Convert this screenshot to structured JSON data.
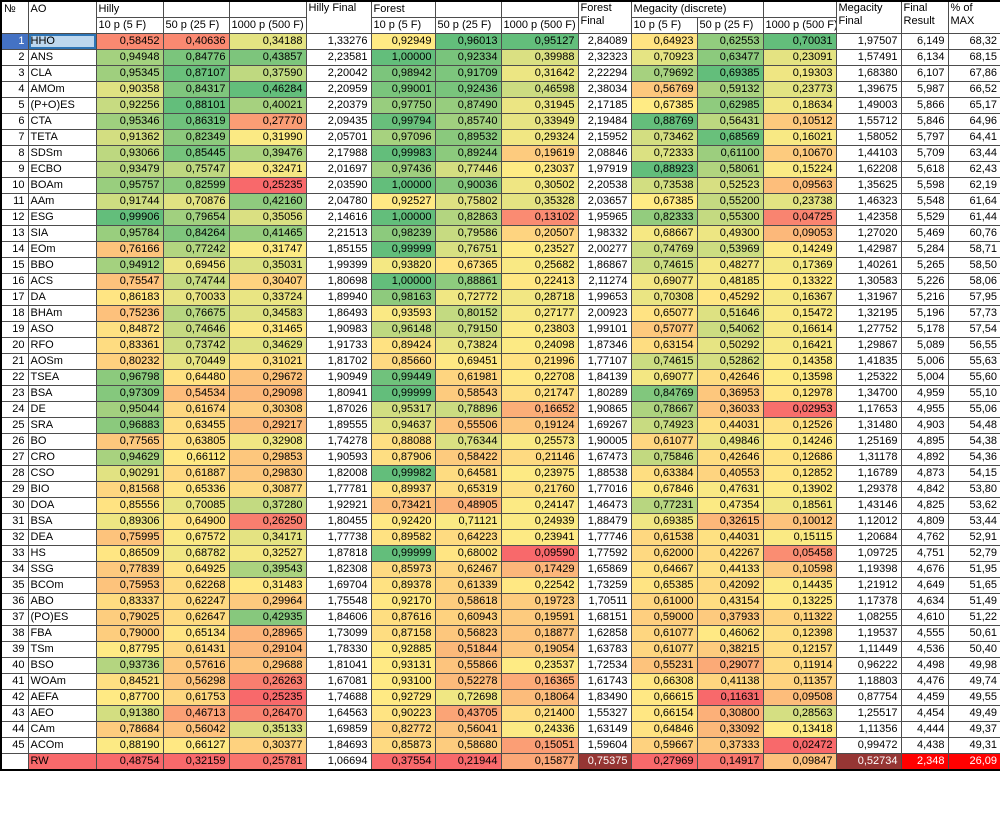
{
  "table": {
    "corner": {
      "num_header": "№",
      "ao_header": "AO"
    },
    "group_headers": {
      "hilly": "Hilly",
      "forest": "Forest",
      "megacity": "Megacity (discrete)"
    },
    "sub_headers": {
      "p10": "10 p (5 F)",
      "p50": "50 p (25 F)",
      "p1000": "1000 p (500 F)"
    },
    "final_headers": {
      "hilly": "Hilly Final",
      "forest": "Forest Final",
      "megacity": "Megacity Final"
    },
    "result_headers": {
      "final": "Final Result",
      "pct": "% of MAX"
    },
    "rows": [
      {
        "num": "1",
        "ao": "HHO",
        "selected": true,
        "values": [
          "0,58452",
          "0,40636",
          "0,34188",
          "1,33276",
          "0,92949",
          "0,96013",
          "0,95127",
          "2,84089",
          "0,64923",
          "0,62553",
          "0,70031",
          "1,97507",
          "6,149",
          "68,32"
        ]
      },
      {
        "num": "2",
        "ao": "ANS",
        "values": [
          "0,94948",
          "0,84776",
          "0,43857",
          "2,23581",
          "1,00000",
          "0,92334",
          "0,39988",
          "2,32323",
          "0,70923",
          "0,63477",
          "0,23091",
          "1,57491",
          "6,134",
          "68,15"
        ]
      },
      {
        "num": "3",
        "ao": "CLA",
        "values": [
          "0,95345",
          "0,87107",
          "0,37590",
          "2,20042",
          "0,98942",
          "0,91709",
          "0,31642",
          "2,22294",
          "0,79692",
          "0,69385",
          "0,19303",
          "1,68380",
          "6,107",
          "67,86"
        ]
      },
      {
        "num": "4",
        "ao": "AMOm",
        "values": [
          "0,90358",
          "0,84317",
          "0,46284",
          "2,20959",
          "0,99001",
          "0,92436",
          "0,46598",
          "2,38034",
          "0,56769",
          "0,59132",
          "0,23773",
          "1,39675",
          "5,987",
          "66,52"
        ]
      },
      {
        "num": "5",
        "ao": "(P+O)ES",
        "values": [
          "0,92256",
          "0,88101",
          "0,40021",
          "2,20379",
          "0,97750",
          "0,87490",
          "0,31945",
          "2,17185",
          "0,67385",
          "0,62985",
          "0,18634",
          "1,49003",
          "5,866",
          "65,17"
        ]
      },
      {
        "num": "6",
        "ao": "CTA",
        "values": [
          "0,95346",
          "0,86319",
          "0,27770",
          "2,09435",
          "0,99794",
          "0,85740",
          "0,33949",
          "2,19484",
          "0,88769",
          "0,56431",
          "0,10512",
          "1,55712",
          "5,846",
          "64,96"
        ]
      },
      {
        "num": "7",
        "ao": "TETA",
        "values": [
          "0,91362",
          "0,82349",
          "0,31990",
          "2,05701",
          "0,97096",
          "0,89532",
          "0,29324",
          "2,15952",
          "0,73462",
          "0,68569",
          "0,16021",
          "1,58052",
          "5,797",
          "64,41"
        ]
      },
      {
        "num": "8",
        "ao": "SDSm",
        "values": [
          "0,93066",
          "0,85445",
          "0,39476",
          "2,17988",
          "0,99983",
          "0,89244",
          "0,19619",
          "2,08846",
          "0,72333",
          "0,61100",
          "0,10670",
          "1,44103",
          "5,709",
          "63,44"
        ]
      },
      {
        "num": "9",
        "ao": "ECBO",
        "values": [
          "0,93479",
          "0,75747",
          "0,32471",
          "2,01697",
          "0,97436",
          "0,77446",
          "0,23037",
          "1,97919",
          "0,88923",
          "0,58061",
          "0,15224",
          "1,62208",
          "5,618",
          "62,43"
        ]
      },
      {
        "num": "10",
        "ao": "BOAm",
        "values": [
          "0,95757",
          "0,82599",
          "0,25235",
          "2,03590",
          "1,00000",
          "0,90036",
          "0,30502",
          "2,20538",
          "0,73538",
          "0,52523",
          "0,09563",
          "1,35625",
          "5,598",
          "62,19"
        ]
      },
      {
        "num": "11",
        "ao": "AAm",
        "values": [
          "0,91744",
          "0,70876",
          "0,42160",
          "2,04780",
          "0,92527",
          "0,75802",
          "0,35328",
          "2,03657",
          "0,67385",
          "0,55200",
          "0,23738",
          "1,46323",
          "5,548",
          "61,64"
        ]
      },
      {
        "num": "12",
        "ao": "ESG",
        "values": [
          "0,99906",
          "0,79654",
          "0,35056",
          "2,14616",
          "1,00000",
          "0,82863",
          "0,13102",
          "1,95965",
          "0,82333",
          "0,55300",
          "0,04725",
          "1,42358",
          "5,529",
          "61,44"
        ]
      },
      {
        "num": "13",
        "ao": "SIA",
        "values": [
          "0,95784",
          "0,84264",
          "0,41465",
          "2,21513",
          "0,98239",
          "0,79586",
          "0,20507",
          "1,98332",
          "0,68667",
          "0,49300",
          "0,09053",
          "1,27020",
          "5,469",
          "60,76"
        ]
      },
      {
        "num": "14",
        "ao": "EOm",
        "values": [
          "0,76166",
          "0,77242",
          "0,31747",
          "1,85155",
          "0,99999",
          "0,76751",
          "0,23527",
          "2,00277",
          "0,74769",
          "0,53969",
          "0,14249",
          "1,42987",
          "5,284",
          "58,71"
        ]
      },
      {
        "num": "15",
        "ao": "BBO",
        "values": [
          "0,94912",
          "0,69456",
          "0,35031",
          "1,99399",
          "0,93820",
          "0,67365",
          "0,25682",
          "1,86867",
          "0,74615",
          "0,48277",
          "0,17369",
          "1,40261",
          "5,265",
          "58,50"
        ]
      },
      {
        "num": "16",
        "ao": "ACS",
        "values": [
          "0,75547",
          "0,74744",
          "0,30407",
          "1,80698",
          "1,00000",
          "0,88861",
          "0,22413",
          "2,11274",
          "0,69077",
          "0,48185",
          "0,13322",
          "1,30583",
          "5,226",
          "58,06"
        ]
      },
      {
        "num": "17",
        "ao": "DA",
        "values": [
          "0,86183",
          "0,70033",
          "0,33724",
          "1,89940",
          "0,98163",
          "0,72772",
          "0,28718",
          "1,99653",
          "0,70308",
          "0,45292",
          "0,16367",
          "1,31967",
          "5,216",
          "57,95"
        ]
      },
      {
        "num": "18",
        "ao": "BHAm",
        "values": [
          "0,75236",
          "0,76675",
          "0,34583",
          "1,86493",
          "0,93593",
          "0,80152",
          "0,27177",
          "2,00923",
          "0,65077",
          "0,51646",
          "0,15472",
          "1,32195",
          "5,196",
          "57,73"
        ]
      },
      {
        "num": "19",
        "ao": "ASO",
        "values": [
          "0,84872",
          "0,74646",
          "0,31465",
          "1,90983",
          "0,96148",
          "0,79150",
          "0,23803",
          "1,99101",
          "0,57077",
          "0,54062",
          "0,16614",
          "1,27752",
          "5,178",
          "57,54"
        ]
      },
      {
        "num": "20",
        "ao": "RFO",
        "values": [
          "0,83361",
          "0,73742",
          "0,34629",
          "1,91733",
          "0,89424",
          "0,73824",
          "0,24098",
          "1,87346",
          "0,63154",
          "0,50292",
          "0,16421",
          "1,29867",
          "5,089",
          "56,55"
        ]
      },
      {
        "num": "21",
        "ao": "AOSm",
        "values": [
          "0,80232",
          "0,70449",
          "0,31021",
          "1,81702",
          "0,85660",
          "0,69451",
          "0,21996",
          "1,77107",
          "0,74615",
          "0,52862",
          "0,14358",
          "1,41835",
          "5,006",
          "55,63"
        ]
      },
      {
        "num": "22",
        "ao": "TSEA",
        "values": [
          "0,96798",
          "0,64480",
          "0,29672",
          "1,90949",
          "0,99449",
          "0,61981",
          "0,22708",
          "1,84139",
          "0,69077",
          "0,42646",
          "0,13598",
          "1,25322",
          "5,004",
          "55,60"
        ]
      },
      {
        "num": "23",
        "ao": "BSA",
        "values": [
          "0,97309",
          "0,54534",
          "0,29098",
          "1,80941",
          "0,99999",
          "0,58543",
          "0,21747",
          "1,80289",
          "0,84769",
          "0,36953",
          "0,12978",
          "1,34700",
          "4,959",
          "55,10"
        ]
      },
      {
        "num": "24",
        "ao": "DE",
        "values": [
          "0,95044",
          "0,61674",
          "0,30308",
          "1,87026",
          "0,95317",
          "0,78896",
          "0,16652",
          "1,90865",
          "0,78667",
          "0,36033",
          "0,02953",
          "1,17653",
          "4,955",
          "55,06"
        ]
      },
      {
        "num": "25",
        "ao": "SRA",
        "values": [
          "0,96883",
          "0,63455",
          "0,29217",
          "1,89555",
          "0,94637",
          "0,55506",
          "0,19124",
          "1,69267",
          "0,74923",
          "0,44031",
          "0,12526",
          "1,31480",
          "4,903",
          "54,48"
        ]
      },
      {
        "num": "26",
        "ao": "BO",
        "values": [
          "0,77565",
          "0,63805",
          "0,32908",
          "1,74278",
          "0,88088",
          "0,76344",
          "0,25573",
          "1,90005",
          "0,61077",
          "0,49846",
          "0,14246",
          "1,25169",
          "4,895",
          "54,38"
        ]
      },
      {
        "num": "27",
        "ao": "CRO",
        "values": [
          "0,94629",
          "0,66112",
          "0,29853",
          "1,90593",
          "0,87906",
          "0,58422",
          "0,21146",
          "1,67473",
          "0,75846",
          "0,42646",
          "0,12686",
          "1,31178",
          "4,892",
          "54,36"
        ]
      },
      {
        "num": "28",
        "ao": "CSO",
        "values": [
          "0,90291",
          "0,61887",
          "0,29830",
          "1,82008",
          "0,99982",
          "0,64581",
          "0,23975",
          "1,88538",
          "0,63384",
          "0,40553",
          "0,12852",
          "1,16789",
          "4,873",
          "54,15"
        ]
      },
      {
        "num": "29",
        "ao": "BIO",
        "values": [
          "0,81568",
          "0,65336",
          "0,30877",
          "1,77781",
          "0,89937",
          "0,65319",
          "0,21760",
          "1,77016",
          "0,67846",
          "0,47631",
          "0,13902",
          "1,29378",
          "4,842",
          "53,80"
        ]
      },
      {
        "num": "30",
        "ao": "DOA",
        "values": [
          "0,85556",
          "0,70085",
          "0,37280",
          "1,92921",
          "0,73421",
          "0,48905",
          "0,24147",
          "1,46473",
          "0,77231",
          "0,47354",
          "0,18561",
          "1,43146",
          "4,825",
          "53,62"
        ]
      },
      {
        "num": "31",
        "ao": "BSA",
        "values": [
          "0,89306",
          "0,64900",
          "0,26250",
          "1,80455",
          "0,92420",
          "0,71121",
          "0,24939",
          "1,88479",
          "0,69385",
          "0,32615",
          "0,10012",
          "1,12012",
          "4,809",
          "53,44"
        ]
      },
      {
        "num": "32",
        "ao": "DEA",
        "values": [
          "0,75995",
          "0,67572",
          "0,34171",
          "1,77738",
          "0,89582",
          "0,64223",
          "0,23941",
          "1,77746",
          "0,61538",
          "0,44031",
          "0,15115",
          "1,20684",
          "4,762",
          "52,91"
        ]
      },
      {
        "num": "33",
        "ao": "HS",
        "values": [
          "0,86509",
          "0,68782",
          "0,32527",
          "1,87818",
          "0,99999",
          "0,68002",
          "0,09590",
          "1,77592",
          "0,62000",
          "0,42267",
          "0,05458",
          "1,09725",
          "4,751",
          "52,79"
        ]
      },
      {
        "num": "34",
        "ao": "SSG",
        "values": [
          "0,77839",
          "0,64925",
          "0,39543",
          "1,82308",
          "0,85973",
          "0,62467",
          "0,17429",
          "1,65869",
          "0,64667",
          "0,44133",
          "0,10598",
          "1,19398",
          "4,676",
          "51,95"
        ]
      },
      {
        "num": "35",
        "ao": "BCOm",
        "values": [
          "0,75953",
          "0,62268",
          "0,31483",
          "1,69704",
          "0,89378",
          "0,61339",
          "0,22542",
          "1,73259",
          "0,65385",
          "0,42092",
          "0,14435",
          "1,21912",
          "4,649",
          "51,65"
        ]
      },
      {
        "num": "36",
        "ao": "ABO",
        "values": [
          "0,83337",
          "0,62247",
          "0,29964",
          "1,75548",
          "0,92170",
          "0,58618",
          "0,19723",
          "1,70511",
          "0,61000",
          "0,43154",
          "0,13225",
          "1,17378",
          "4,634",
          "51,49"
        ]
      },
      {
        "num": "37",
        "ao": "(PO)ES",
        "values": [
          "0,79025",
          "0,62647",
          "0,42935",
          "1,84606",
          "0,87616",
          "0,60943",
          "0,19591",
          "1,68151",
          "0,59000",
          "0,37933",
          "0,11322",
          "1,08255",
          "4,610",
          "51,22"
        ]
      },
      {
        "num": "38",
        "ao": "FBA",
        "values": [
          "0,79000",
          "0,65134",
          "0,28965",
          "1,73099",
          "0,87158",
          "0,56823",
          "0,18877",
          "1,62858",
          "0,61077",
          "0,46062",
          "0,12398",
          "1,19537",
          "4,555",
          "50,61"
        ]
      },
      {
        "num": "39",
        "ao": "TSm",
        "values": [
          "0,87795",
          "0,61431",
          "0,29104",
          "1,78330",
          "0,92885",
          "0,51844",
          "0,19054",
          "1,63783",
          "0,61077",
          "0,38215",
          "0,12157",
          "1,11449",
          "4,536",
          "50,40"
        ]
      },
      {
        "num": "40",
        "ao": "BSO",
        "values": [
          "0,93736",
          "0,57616",
          "0,29688",
          "1,81041",
          "0,93131",
          "0,55866",
          "0,23537",
          "1,72534",
          "0,55231",
          "0,29077",
          "0,11914",
          "0,96222",
          "4,498",
          "49,98"
        ]
      },
      {
        "num": "41",
        "ao": "WOAm",
        "values": [
          "0,84521",
          "0,56298",
          "0,26263",
          "1,67081",
          "0,93100",
          "0,52278",
          "0,16365",
          "1,61743",
          "0,66308",
          "0,41138",
          "0,11357",
          "1,18803",
          "4,476",
          "49,74"
        ]
      },
      {
        "num": "42",
        "ao": "AEFA",
        "values": [
          "0,87700",
          "0,61753",
          "0,25235",
          "1,74688",
          "0,92729",
          "0,72698",
          "0,18064",
          "1,83490",
          "0,66615",
          "0,11631",
          "0,09508",
          "0,87754",
          "4,459",
          "49,55"
        ]
      },
      {
        "num": "43",
        "ao": "AEO",
        "values": [
          "0,91380",
          "0,46713",
          "0,26470",
          "1,64563",
          "0,90223",
          "0,43705",
          "0,21400",
          "1,55327",
          "0,66154",
          "0,30800",
          "0,28563",
          "1,25517",
          "4,454",
          "49,49"
        ]
      },
      {
        "num": "44",
        "ao": "CAm",
        "values": [
          "0,78684",
          "0,56042",
          "0,35133",
          "1,69859",
          "0,82772",
          "0,56041",
          "0,24336",
          "1,63149",
          "0,64846",
          "0,33092",
          "0,13418",
          "1,11356",
          "4,444",
          "49,37"
        ]
      },
      {
        "num": "45",
        "ao": "ACOm",
        "values": [
          "0,88190",
          "0,66127",
          "0,30377",
          "1,84693",
          "0,85873",
          "0,58680",
          "0,15051",
          "1,59604",
          "0,59667",
          "0,37333",
          "0,02472",
          "0,99472",
          "4,438",
          "49,31"
        ]
      },
      {
        "num": "",
        "ao": "RW",
        "baseline": true,
        "values": [
          "0,48754",
          "0,32159",
          "0,25781",
          "1,06694",
          "0,37554",
          "0,21944",
          "0,15877",
          "0,75375",
          "0,27969",
          "0,14917",
          "0,09847",
          "0,52734",
          "2,348",
          "26,09"
        ]
      }
    ]
  },
  "colors": {
    "scale_min": "#F8696B",
    "scale_mid": "#FFEB84",
    "scale_max": "#63BE7B",
    "selection_row_number_bg": "#4472C4",
    "selection_row_number_text": "#FFFFFF",
    "selection_cell_bg": "#BDD7EE",
    "selection_cell_border": "#2E75B6",
    "baseline_name_bg": "#F8696B",
    "baseline_final_bg": "#963634",
    "baseline_result_bg": "#FF0000",
    "baseline_text": "#FFFFFF"
  }
}
